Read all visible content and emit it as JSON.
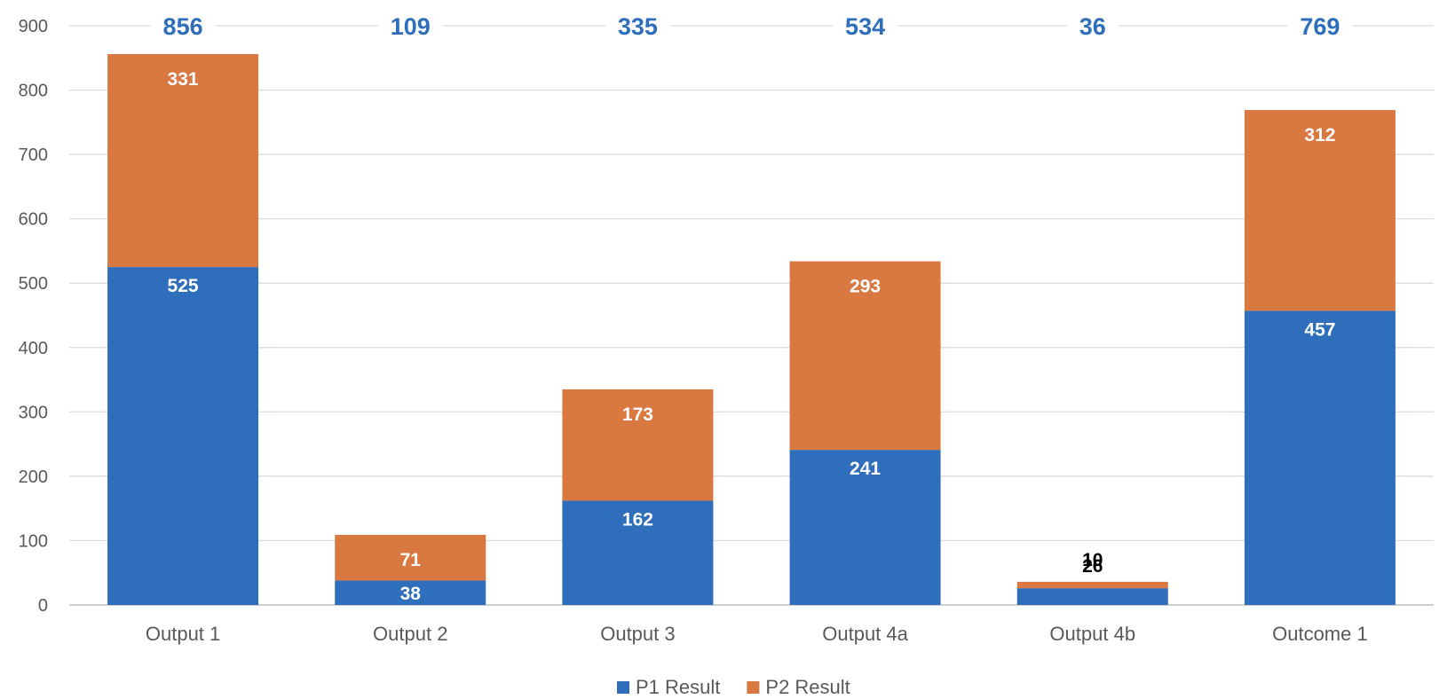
{
  "chart_data": {
    "type": "bar",
    "stacked": true,
    "categories": [
      "Output 1",
      "Output 2",
      "Output 3",
      "Output 4a",
      "Output 4b",
      "Outcome 1"
    ],
    "series": [
      {
        "name": "P1 Result",
        "color": "#2E6EBB",
        "values": [
          525,
          38,
          162,
          241,
          26,
          457
        ]
      },
      {
        "name": "P2 Result",
        "color": "#D97841",
        "values": [
          331,
          71,
          173,
          293,
          10,
          312
        ]
      }
    ],
    "totals": [
      856,
      109,
      335,
      534,
      36,
      769
    ],
    "total_label_color": "#2E6EBB",
    "ylim": [
      0,
      900
    ],
    "yticks": [
      0,
      100,
      200,
      300,
      400,
      500,
      600,
      700,
      800,
      900
    ],
    "grid": true,
    "legend_position": "bottom"
  }
}
